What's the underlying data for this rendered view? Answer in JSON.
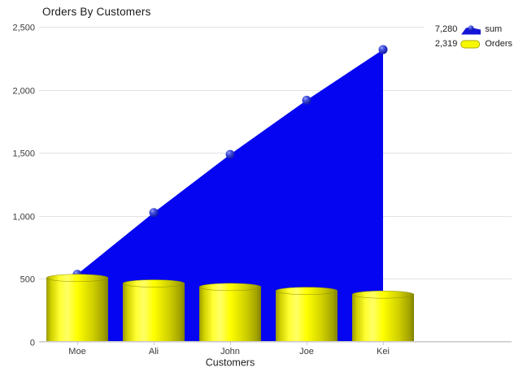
{
  "title": "Orders By Customers",
  "legend": {
    "position": "top-right",
    "items": [
      {
        "value": "7,280",
        "label": "sum"
      },
      {
        "value": "2,319",
        "label": "Orders"
      }
    ]
  },
  "chart_data": {
    "type": "combo",
    "title": "Orders By Customers",
    "xlabel": "Customers",
    "ylabel": "",
    "categories": [
      "Moe",
      "Ali",
      "John",
      "Joe",
      "Kei"
    ],
    "series": [
      {
        "name": "sum",
        "type": "area",
        "values": [
          534,
          1024,
          1486,
          1917,
          2319
        ],
        "total_label": "7,280",
        "color": "#0505f2",
        "marker": "sphere"
      },
      {
        "name": "Orders",
        "type": "cylinder-bar",
        "values": [
          534,
          490,
          462,
          431,
          402
        ],
        "total_label": "2,319",
        "color": "#ffff00"
      }
    ],
    "ylim": [
      0,
      2500
    ],
    "yticks": [
      0,
      500,
      1000,
      1500,
      2000,
      2500
    ],
    "ytick_labels": [
      "0",
      "500",
      "1,000",
      "1,500",
      "2,000",
      "2,500"
    ],
    "grid": true,
    "legend_position": "top-right",
    "colors": {
      "area_blue": "#0505f2",
      "bar_yellow": "#ffff00",
      "grid_line": "#e2e2e2",
      "axis_line": "#c9c9c9",
      "tick_text": "#3a3a3a",
      "axis_title_text": "#1f1f1f"
    }
  }
}
